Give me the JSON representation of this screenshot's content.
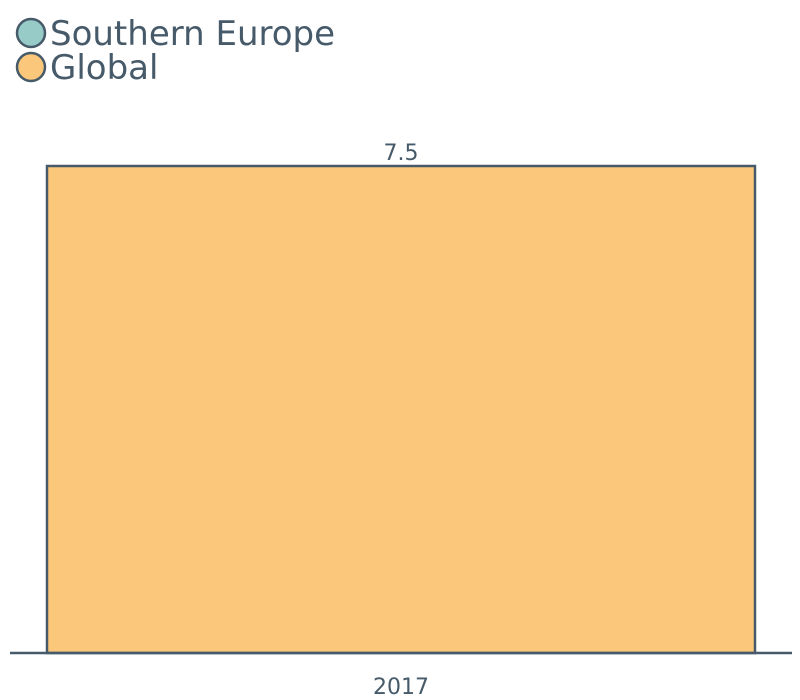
{
  "chart_data": {
    "type": "bar",
    "categories": [
      "2017"
    ],
    "series": [
      {
        "name": "Southern Europe",
        "color": "#96cbc8",
        "values": [
          null
        ]
      },
      {
        "name": "Global",
        "color": "#fac77b",
        "values": [
          7.5
        ]
      }
    ],
    "data_labels": [
      "7.5"
    ],
    "ylim": [
      0,
      7.5
    ],
    "grid": false,
    "legend_position": "top-left",
    "axis_color": "#465a69"
  }
}
